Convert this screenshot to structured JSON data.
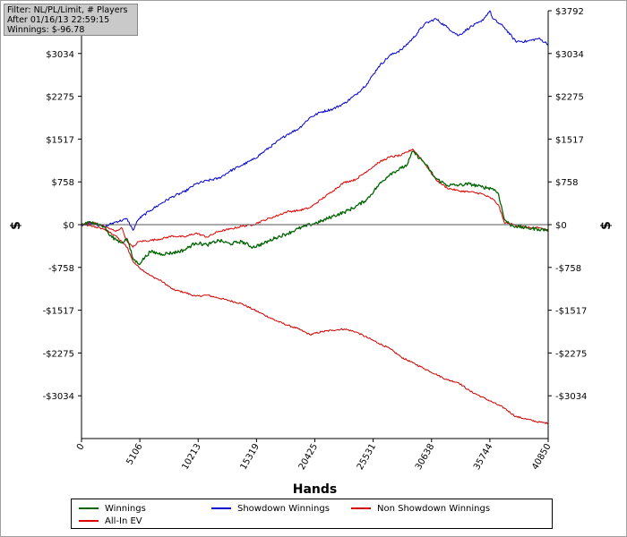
{
  "filter_box": {
    "line1": "Filter: NL/PL/Limit, # Players",
    "line2": "After 01/16/13 22:59:15",
    "line3": "Winnings: $-96.78"
  },
  "chart_data": {
    "type": "line",
    "xlabel": "Hands",
    "ylabel": "$",
    "xlim": [
      0,
      40850
    ],
    "ylim": [
      -3792,
      3792
    ],
    "x_ticks": [
      0,
      5106,
      10213,
      15319,
      20425,
      25531,
      30638,
      35744,
      40850
    ],
    "y_ticks": [
      3792,
      3034,
      2275,
      1517,
      758,
      0,
      -758,
      -1517,
      -2275,
      -3034
    ],
    "y_tick_labels": [
      "$3792",
      "$3034",
      "$2275",
      "$1517",
      "$758",
      "$0",
      "-$758",
      "-$1517",
      "-$2275",
      "-$3034"
    ],
    "grid": false,
    "zero_line": true,
    "legend_position": "bottom",
    "series": [
      {
        "name": "Winnings",
        "color": "#006400",
        "x": [
          0,
          1000,
          2000,
          2500,
          3000,
          3500,
          4000,
          4500,
          5000,
          6000,
          7000,
          8000,
          9000,
          10000,
          11000,
          12000,
          13000,
          14000,
          15000,
          16000,
          17000,
          18000,
          19000,
          20000,
          21000,
          22000,
          23000,
          24000,
          25000,
          26000,
          27000,
          28000,
          28500,
          29000,
          30000,
          31000,
          32000,
          33000,
          34000,
          35000,
          36000,
          36500,
          37000,
          37500,
          38000,
          39000,
          40000,
          40850
        ],
        "y": [
          0,
          50,
          -40,
          -200,
          -260,
          -320,
          -250,
          -600,
          -700,
          -480,
          -520,
          -500,
          -450,
          -320,
          -360,
          -280,
          -340,
          -300,
          -400,
          -330,
          -230,
          -160,
          -70,
          0,
          60,
          150,
          220,
          320,
          450,
          700,
          900,
          1000,
          1060,
          1300,
          1100,
          820,
          700,
          700,
          720,
          670,
          640,
          550,
          100,
          0,
          -30,
          -60,
          -80,
          -97
        ]
      },
      {
        "name": "Showdown Winnings",
        "color": "#0000cc",
        "x": [
          0,
          1000,
          2000,
          3000,
          4000,
          4500,
          5000,
          6000,
          7000,
          8000,
          9000,
          10000,
          11000,
          12000,
          13000,
          14000,
          15000,
          16000,
          17000,
          18000,
          19000,
          20000,
          21000,
          22000,
          23000,
          24000,
          25000,
          26000,
          27000,
          28000,
          29000,
          30000,
          31000,
          32000,
          33000,
          34000,
          35000,
          35744,
          36000,
          37000,
          38000,
          39000,
          40000,
          40850
        ],
        "y": [
          0,
          30,
          -40,
          50,
          100,
          -100,
          100,
          250,
          380,
          500,
          580,
          720,
          780,
          820,
          950,
          1050,
          1150,
          1300,
          1450,
          1600,
          1700,
          1900,
          2000,
          2050,
          2150,
          2300,
          2500,
          2800,
          3000,
          3100,
          3300,
          3550,
          3650,
          3500,
          3350,
          3500,
          3600,
          3792,
          3650,
          3500,
          3250,
          3250,
          3300,
          3200
        ]
      },
      {
        "name": "Non Showdown Winnings",
        "color": "#cc0000",
        "x": [
          0,
          1000,
          2000,
          3000,
          4000,
          4500,
          5000,
          6000,
          7000,
          8000,
          9000,
          10000,
          11000,
          12000,
          13000,
          14000,
          15000,
          16000,
          17000,
          18000,
          19000,
          20000,
          21000,
          22000,
          23000,
          24000,
          25000,
          26000,
          27000,
          28000,
          29000,
          30000,
          31000,
          32000,
          33000,
          34000,
          35000,
          36000,
          37000,
          38000,
          39000,
          40000,
          40850
        ],
        "y": [
          0,
          -30,
          -80,
          -200,
          -400,
          -650,
          -750,
          -900,
          -1000,
          -1150,
          -1200,
          -1270,
          -1250,
          -1300,
          -1350,
          -1400,
          -1500,
          -1600,
          -1700,
          -1780,
          -1850,
          -1950,
          -1900,
          -1870,
          -1850,
          -1900,
          -2000,
          -2100,
          -2200,
          -2350,
          -2450,
          -2550,
          -2650,
          -2750,
          -2800,
          -2950,
          -3050,
          -3150,
          -3250,
          -3400,
          -3450,
          -3500,
          -3520
        ]
      },
      {
        "name": "All-In EV",
        "color": "#e00000",
        "x": [
          0,
          1000,
          2000,
          3000,
          3500,
          4000,
          4500,
          5000,
          6000,
          7000,
          8000,
          9000,
          10000,
          11000,
          12000,
          13000,
          14000,
          15000,
          16000,
          17000,
          18000,
          19000,
          20000,
          21000,
          22000,
          23000,
          24000,
          25000,
          26000,
          27000,
          28000,
          29000,
          30000,
          31000,
          32000,
          33000,
          34000,
          35000,
          36000,
          36500,
          37000,
          38000,
          39000,
          40000,
          40850
        ],
        "y": [
          0,
          40,
          -30,
          -120,
          -50,
          -300,
          -400,
          -300,
          -280,
          -250,
          -200,
          -220,
          -150,
          -220,
          -120,
          -80,
          -30,
          0,
          80,
          150,
          230,
          250,
          300,
          450,
          600,
          750,
          800,
          950,
          1100,
          1200,
          1230,
          1340,
          1100,
          800,
          650,
          600,
          580,
          550,
          450,
          350,
          40,
          -10,
          -50,
          -60,
          -90
        ]
      }
    ]
  }
}
